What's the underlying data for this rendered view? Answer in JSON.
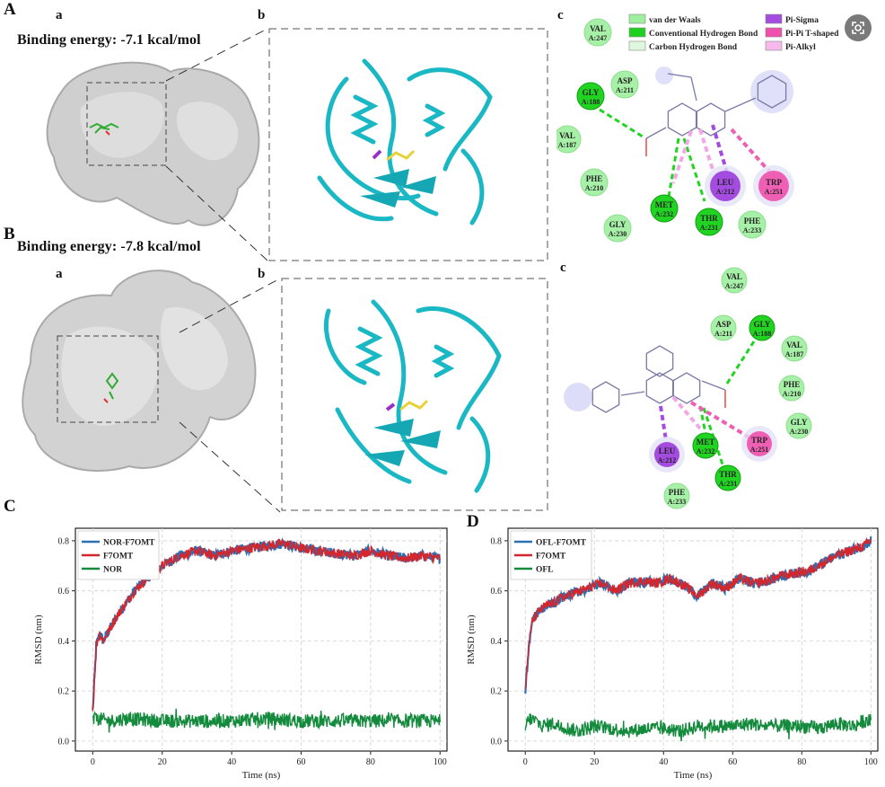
{
  "panels": {
    "A": {
      "letter": "A",
      "sub_a": "a",
      "sub_b": "b",
      "sub_c": "c",
      "binding_energy": "Binding energy: -7.1 kcal/mol",
      "legend": [
        {
          "label": "van der Waals",
          "color": "#9ef09e"
        },
        {
          "label": "Conventional Hydrogen Bond",
          "color": "#1fd11f"
        },
        {
          "label": "Carbon Hydrogen Bond",
          "color": "#dff7df"
        },
        {
          "label": "Pi-Sigma",
          "color": "#a44be0"
        },
        {
          "label": "Pi-Pi T-shaped",
          "color": "#ef4fae"
        },
        {
          "label": "Pi-Alkyl",
          "color": "#f7b8ec"
        }
      ],
      "residues": [
        {
          "name": "VAL",
          "num": "A:247",
          "type": "vdw"
        },
        {
          "name": "ASP",
          "num": "A:211",
          "type": "vdw"
        },
        {
          "name": "GLY",
          "num": "A:188",
          "type": "hbond"
        },
        {
          "name": "VAL",
          "num": "A:187",
          "type": "vdw"
        },
        {
          "name": "PHE",
          "num": "A:210",
          "type": "vdw"
        },
        {
          "name": "GLY",
          "num": "A:230",
          "type": "vdw"
        },
        {
          "name": "MET",
          "num": "A:232",
          "type": "hbond"
        },
        {
          "name": "THR",
          "num": "A:231",
          "type": "hbond"
        },
        {
          "name": "PHE",
          "num": "A:233",
          "type": "vdw"
        },
        {
          "name": "LEU",
          "num": "A:212",
          "type": "pisigma"
        },
        {
          "name": "TRP",
          "num": "A:251",
          "type": "pipi"
        }
      ]
    },
    "B": {
      "letter": "B",
      "sub_a": "a",
      "sub_b": "b",
      "sub_c": "c",
      "binding_energy": "Binding energy: -7.8 kcal/mol",
      "residues": [
        {
          "name": "VAL",
          "num": "A:247",
          "type": "vdw"
        },
        {
          "name": "ASP",
          "num": "A:211",
          "type": "vdw"
        },
        {
          "name": "GLY",
          "num": "A:188",
          "type": "hbond"
        },
        {
          "name": "VAL",
          "num": "A:187",
          "type": "vdw"
        },
        {
          "name": "PHE",
          "num": "A:210",
          "type": "vdw"
        },
        {
          "name": "GLY",
          "num": "A:230",
          "type": "vdw"
        },
        {
          "name": "TRP",
          "num": "A:251",
          "type": "pipi"
        },
        {
          "name": "MET",
          "num": "A:232",
          "type": "hbond"
        },
        {
          "name": "LEU",
          "num": "A:212",
          "type": "pisigma"
        },
        {
          "name": "THR",
          "num": "A:231",
          "type": "hbond"
        },
        {
          "name": "PHE",
          "num": "A:233",
          "type": "vdw"
        }
      ]
    },
    "C": {
      "letter": "C"
    },
    "D": {
      "letter": "D"
    }
  },
  "residue_colors": {
    "vdw": "#a7f0a7",
    "hbond": "#22d422",
    "pisigma": "#a44be0",
    "pipi": "#ef5fb3"
  },
  "chart_data": [
    {
      "id": "C",
      "type": "line",
      "xlabel": "Time (ns)",
      "ylabel": "RMSD (nm)",
      "xlim": [
        -5,
        102
      ],
      "ylim": [
        -0.04,
        0.85
      ],
      "xticks": [
        0,
        20,
        40,
        60,
        80,
        100
      ],
      "yticks": [
        0.0,
        0.2,
        0.4,
        0.6,
        0.8
      ],
      "grid": true,
      "legend_position": "top-left",
      "series": [
        {
          "name": "NOR-F7OMT",
          "color": "#2b6fb5",
          "x": [
            0,
            1,
            2,
            3,
            5,
            7,
            10,
            12,
            15,
            18,
            20,
            25,
            30,
            35,
            40,
            45,
            50,
            55,
            60,
            65,
            70,
            75,
            80,
            85,
            90,
            95,
            100
          ],
          "y": [
            0.12,
            0.38,
            0.43,
            0.4,
            0.45,
            0.5,
            0.56,
            0.6,
            0.64,
            0.68,
            0.7,
            0.74,
            0.76,
            0.74,
            0.76,
            0.77,
            0.78,
            0.79,
            0.77,
            0.76,
            0.75,
            0.74,
            0.76,
            0.74,
            0.73,
            0.74,
            0.73
          ]
        },
        {
          "name": "F7OMT",
          "color": "#d6262b",
          "x": [
            0,
            1,
            2,
            3,
            5,
            7,
            10,
            12,
            15,
            18,
            20,
            25,
            30,
            35,
            40,
            45,
            50,
            55,
            60,
            65,
            70,
            75,
            80,
            85,
            90,
            95,
            100
          ],
          "y": [
            0.12,
            0.38,
            0.43,
            0.4,
            0.45,
            0.5,
            0.56,
            0.6,
            0.64,
            0.68,
            0.7,
            0.74,
            0.76,
            0.74,
            0.76,
            0.77,
            0.78,
            0.79,
            0.77,
            0.76,
            0.75,
            0.74,
            0.76,
            0.74,
            0.73,
            0.74,
            0.73
          ]
        },
        {
          "name": "NOR",
          "color": "#138a3c",
          "x": [
            0,
            1,
            5,
            10,
            20,
            30,
            40,
            50,
            60,
            70,
            80,
            90,
            100
          ],
          "y": [
            0.08,
            0.09,
            0.08,
            0.09,
            0.08,
            0.08,
            0.08,
            0.09,
            0.08,
            0.08,
            0.08,
            0.08,
            0.08
          ]
        }
      ]
    },
    {
      "id": "D",
      "type": "line",
      "xlabel": "Time (ns)",
      "ylabel": "RMSD (nm)",
      "xlim": [
        -5,
        102
      ],
      "ylim": [
        -0.04,
        0.85
      ],
      "xticks": [
        0,
        20,
        40,
        60,
        80,
        100
      ],
      "yticks": [
        0.0,
        0.2,
        0.4,
        0.6,
        0.8
      ],
      "grid": true,
      "legend_position": "top-left",
      "series": [
        {
          "name": "OFL-F7OMT",
          "color": "#2b6fb5",
          "x": [
            0,
            1,
            2,
            4,
            6,
            8,
            10,
            14,
            18,
            22,
            26,
            30,
            34,
            38,
            42,
            46,
            50,
            54,
            58,
            62,
            66,
            70,
            74,
            78,
            82,
            86,
            90,
            94,
            98,
            100
          ],
          "y": [
            0.2,
            0.38,
            0.48,
            0.52,
            0.54,
            0.55,
            0.57,
            0.59,
            0.61,
            0.63,
            0.6,
            0.63,
            0.64,
            0.63,
            0.65,
            0.62,
            0.58,
            0.63,
            0.61,
            0.65,
            0.63,
            0.64,
            0.66,
            0.67,
            0.68,
            0.71,
            0.74,
            0.76,
            0.78,
            0.8
          ]
        },
        {
          "name": "F7OMT",
          "color": "#d6262b",
          "x": [
            0,
            1,
            2,
            4,
            6,
            8,
            10,
            14,
            18,
            22,
            26,
            30,
            34,
            38,
            42,
            46,
            50,
            54,
            58,
            62,
            66,
            70,
            74,
            78,
            82,
            86,
            90,
            94,
            98,
            100
          ],
          "y": [
            0.2,
            0.38,
            0.48,
            0.52,
            0.54,
            0.55,
            0.57,
            0.59,
            0.61,
            0.63,
            0.6,
            0.63,
            0.64,
            0.63,
            0.65,
            0.62,
            0.58,
            0.63,
            0.61,
            0.65,
            0.63,
            0.64,
            0.66,
            0.67,
            0.68,
            0.71,
            0.74,
            0.76,
            0.78,
            0.8
          ]
        },
        {
          "name": "OFL",
          "color": "#138a3c",
          "x": [
            0,
            1,
            3,
            5,
            8,
            10,
            15,
            20,
            25,
            30,
            35,
            40,
            45,
            50,
            55,
            60,
            65,
            70,
            75,
            80,
            85,
            90,
            95,
            98,
            100
          ],
          "y": [
            0.05,
            0.09,
            0.08,
            0.06,
            0.07,
            0.06,
            0.04,
            0.06,
            0.05,
            0.04,
            0.05,
            0.05,
            0.04,
            0.06,
            0.06,
            0.06,
            0.07,
            0.06,
            0.06,
            0.06,
            0.05,
            0.07,
            0.06,
            0.08,
            0.08
          ]
        }
      ]
    }
  ]
}
